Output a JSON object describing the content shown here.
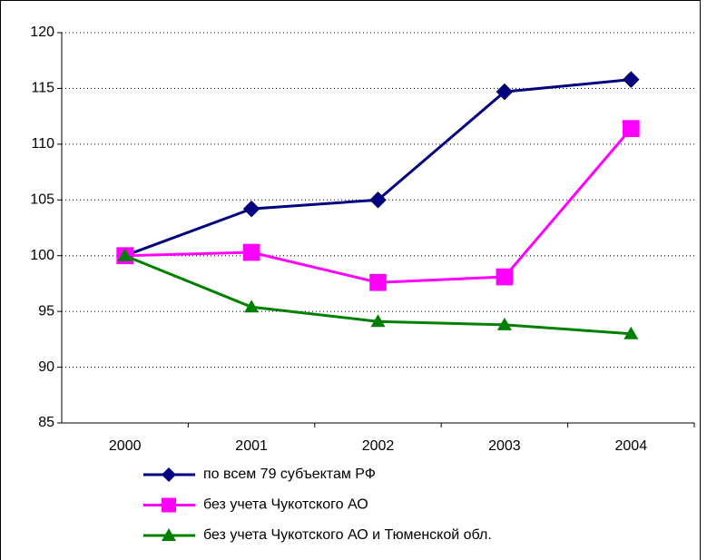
{
  "chart_data": {
    "type": "line",
    "categories": [
      "2000",
      "2001",
      "2002",
      "2003",
      "2004"
    ],
    "series": [
      {
        "name": "по всем 79 субъектам РФ",
        "color": "#000080",
        "marker": "diamond",
        "values": [
          100,
          104.2,
          105,
          114.7,
          115.8
        ]
      },
      {
        "name": "без учета Чукотского АО",
        "color": "#ff00ff",
        "marker": "square",
        "values": [
          100,
          100.3,
          97.6,
          98.1,
          111.4
        ]
      },
      {
        "name": "без учета Чукотского АО и Тюменской обл.",
        "color": "#008000",
        "marker": "triangle",
        "values": [
          100,
          95.4,
          94.1,
          93.8,
          93.0
        ]
      }
    ],
    "ylim": [
      85,
      120
    ],
    "yticks": [
      85,
      90,
      95,
      100,
      105,
      110,
      115,
      120
    ],
    "grid": true,
    "legend": "bottom"
  }
}
